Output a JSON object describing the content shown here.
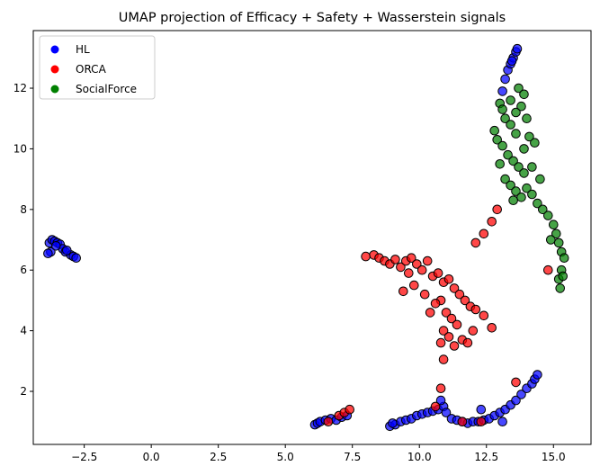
{
  "chart_data": {
    "type": "scatter",
    "title": "UMAP projection of Efficacy + Safety + Wasserstein signals",
    "xlabel": "",
    "ylabel": "",
    "xlim": [
      -4.4,
      16.4
    ],
    "ylim": [
      0.25,
      13.9
    ],
    "xticks": [
      -2.5,
      0.0,
      2.5,
      5.0,
      7.5,
      10.0,
      12.5,
      15.0
    ],
    "xtick_labels": [
      "−2.5",
      "0.0",
      "2.5",
      "5.0",
      "7.5",
      "10.0",
      "12.5",
      "15.0"
    ],
    "yticks": [
      2,
      4,
      6,
      8,
      10,
      12
    ],
    "ytick_labels": [
      "2",
      "4",
      "6",
      "8",
      "10",
      "12"
    ],
    "grid": false,
    "legend_position": "upper-left",
    "series": [
      {
        "name": "HL",
        "color": "#0000ff",
        "points": [
          [
            -3.8,
            6.9
          ],
          [
            -3.7,
            7.0
          ],
          [
            -3.6,
            6.95
          ],
          [
            -3.5,
            6.9
          ],
          [
            -3.4,
            6.85
          ],
          [
            -3.3,
            6.7
          ],
          [
            -3.2,
            6.6
          ],
          [
            -3.0,
            6.5
          ],
          [
            -2.9,
            6.45
          ],
          [
            -2.8,
            6.4
          ],
          [
            -3.75,
            6.6
          ],
          [
            -3.85,
            6.55
          ],
          [
            -3.55,
            6.8
          ],
          [
            -3.15,
            6.65
          ],
          [
            6.1,
            0.9
          ],
          [
            6.2,
            0.95
          ],
          [
            6.3,
            1.0
          ],
          [
            6.5,
            1.05
          ],
          [
            6.7,
            1.1
          ],
          [
            6.9,
            1.05
          ],
          [
            7.1,
            1.15
          ],
          [
            7.3,
            1.2
          ],
          [
            8.9,
            0.85
          ],
          [
            9.1,
            0.9
          ],
          [
            9.3,
            1.0
          ],
          [
            9.5,
            1.05
          ],
          [
            9.7,
            1.1
          ],
          [
            9.9,
            1.2
          ],
          [
            10.1,
            1.25
          ],
          [
            10.3,
            1.3
          ],
          [
            10.5,
            1.35
          ],
          [
            10.7,
            1.4
          ],
          [
            10.9,
            1.5
          ],
          [
            11.0,
            1.3
          ],
          [
            11.2,
            1.1
          ],
          [
            11.4,
            1.05
          ],
          [
            11.6,
            1.0
          ],
          [
            11.8,
            0.95
          ],
          [
            12.0,
            1.0
          ],
          [
            12.2,
            1.0
          ],
          [
            12.4,
            1.05
          ],
          [
            12.6,
            1.1
          ],
          [
            12.8,
            1.2
          ],
          [
            13.0,
            1.3
          ],
          [
            13.2,
            1.4
          ],
          [
            13.4,
            1.55
          ],
          [
            13.6,
            1.7
          ],
          [
            13.8,
            1.9
          ],
          [
            14.0,
            2.1
          ],
          [
            14.2,
            2.25
          ],
          [
            14.3,
            2.4
          ],
          [
            14.4,
            2.55
          ],
          [
            10.8,
            1.7
          ],
          [
            12.3,
            1.4
          ],
          [
            13.1,
            1.0
          ],
          [
            9.0,
            0.95
          ],
          [
            13.3,
            12.6
          ],
          [
            13.4,
            12.8
          ],
          [
            13.5,
            13.0
          ],
          [
            13.6,
            13.2
          ],
          [
            13.65,
            13.3
          ],
          [
            13.2,
            12.3
          ],
          [
            13.1,
            11.9
          ],
          [
            13.45,
            12.9
          ]
        ]
      },
      {
        "name": "ORCA",
        "color": "#ff0000",
        "points": [
          [
            6.6,
            1.0
          ],
          [
            7.0,
            1.2
          ],
          [
            7.2,
            1.3
          ],
          [
            7.4,
            1.4
          ],
          [
            8.3,
            6.5
          ],
          [
            8.5,
            6.4
          ],
          [
            8.7,
            6.3
          ],
          [
            8.9,
            6.2
          ],
          [
            9.1,
            6.35
          ],
          [
            9.3,
            6.1
          ],
          [
            9.5,
            6.3
          ],
          [
            9.7,
            6.4
          ],
          [
            9.9,
            6.2
          ],
          [
            10.1,
            6.0
          ],
          [
            10.3,
            6.3
          ],
          [
            10.5,
            5.8
          ],
          [
            10.7,
            5.9
          ],
          [
            10.9,
            5.6
          ],
          [
            11.1,
            5.7
          ],
          [
            11.3,
            5.4
          ],
          [
            11.5,
            5.2
          ],
          [
            11.7,
            5.0
          ],
          [
            11.9,
            4.8
          ],
          [
            12.1,
            4.7
          ],
          [
            10.8,
            5.0
          ],
          [
            11.0,
            4.6
          ],
          [
            11.2,
            4.4
          ],
          [
            11.4,
            4.2
          ],
          [
            10.9,
            4.0
          ],
          [
            11.1,
            3.8
          ],
          [
            10.8,
            3.6
          ],
          [
            11.3,
            3.5
          ],
          [
            11.6,
            3.7
          ],
          [
            12.0,
            4.0
          ],
          [
            12.4,
            4.5
          ],
          [
            12.7,
            4.1
          ],
          [
            11.8,
            3.6
          ],
          [
            10.9,
            3.05
          ],
          [
            10.8,
            2.1
          ],
          [
            10.6,
            1.5
          ],
          [
            9.8,
            5.5
          ],
          [
            9.6,
            5.9
          ],
          [
            9.4,
            5.3
          ],
          [
            10.2,
            5.2
          ],
          [
            10.4,
            4.6
          ],
          [
            10.6,
            4.9
          ],
          [
            12.1,
            6.9
          ],
          [
            12.4,
            7.2
          ],
          [
            12.7,
            7.6
          ],
          [
            12.9,
            8.0
          ],
          [
            13.6,
            2.3
          ],
          [
            14.8,
            6.0
          ],
          [
            12.3,
            1.0
          ],
          [
            11.6,
            1.0
          ],
          [
            8.0,
            6.45
          ]
        ]
      },
      {
        "name": "SocialForce",
        "color": "#008000",
        "points": [
          [
            13.0,
            11.5
          ],
          [
            13.1,
            11.3
          ],
          [
            13.2,
            11.0
          ],
          [
            13.4,
            10.8
          ],
          [
            13.6,
            10.5
          ],
          [
            13.7,
            12.0
          ],
          [
            13.9,
            11.8
          ],
          [
            13.8,
            11.4
          ],
          [
            13.6,
            11.2
          ],
          [
            13.4,
            11.6
          ],
          [
            12.9,
            10.3
          ],
          [
            13.1,
            10.1
          ],
          [
            13.3,
            9.8
          ],
          [
            13.5,
            9.6
          ],
          [
            13.7,
            9.4
          ],
          [
            13.9,
            9.2
          ],
          [
            13.2,
            9.0
          ],
          [
            13.4,
            8.8
          ],
          [
            13.6,
            8.6
          ],
          [
            13.8,
            8.4
          ],
          [
            14.0,
            8.7
          ],
          [
            14.2,
            8.5
          ],
          [
            14.4,
            8.2
          ],
          [
            14.6,
            8.0
          ],
          [
            14.8,
            7.8
          ],
          [
            15.0,
            7.5
          ],
          [
            15.1,
            7.2
          ],
          [
            15.2,
            6.9
          ],
          [
            15.3,
            6.6
          ],
          [
            15.4,
            6.4
          ],
          [
            15.3,
            6.0
          ],
          [
            15.2,
            5.7
          ],
          [
            15.25,
            5.4
          ],
          [
            15.35,
            5.8
          ],
          [
            14.3,
            10.2
          ],
          [
            14.1,
            10.4
          ],
          [
            13.9,
            10.0
          ],
          [
            14.5,
            9.0
          ],
          [
            14.2,
            9.4
          ],
          [
            12.8,
            10.6
          ],
          [
            13.0,
            9.5
          ],
          [
            14.0,
            11.0
          ],
          [
            13.5,
            8.3
          ],
          [
            14.9,
            7.0
          ]
        ]
      }
    ]
  }
}
